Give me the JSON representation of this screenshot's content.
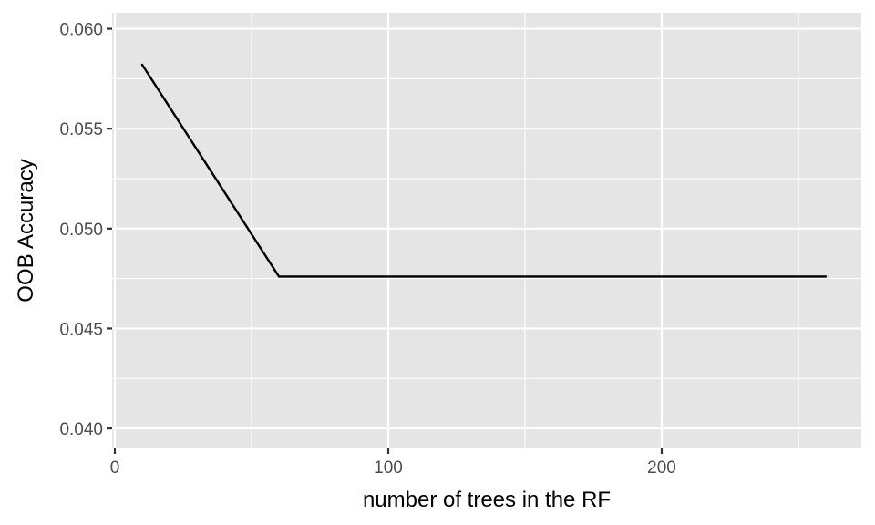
{
  "chart_data": {
    "type": "line",
    "title": "",
    "xlabel": "number of trees in the RF",
    "ylabel": "OOB Accuracy",
    "xlim": [
      -1,
      273
    ],
    "ylim": [
      0.039,
      0.0608
    ],
    "x_ticks": [
      0,
      100,
      200
    ],
    "x_tick_labels": [
      "0",
      "100",
      "200"
    ],
    "x_minor_ticks": [
      50,
      150,
      250
    ],
    "y_ticks": [
      0.04,
      0.045,
      0.05,
      0.055,
      0.06
    ],
    "y_tick_labels": [
      "0.040",
      "0.045",
      "0.050",
      "0.055",
      "0.060"
    ],
    "y_minor_ticks": [
      0.0425,
      0.0475,
      0.0525,
      0.0575
    ],
    "grid": true,
    "series": [
      {
        "color": "#000000",
        "x": [
          10,
          60,
          260
        ],
        "y": [
          0.0582,
          0.0476,
          0.0476
        ]
      }
    ]
  }
}
